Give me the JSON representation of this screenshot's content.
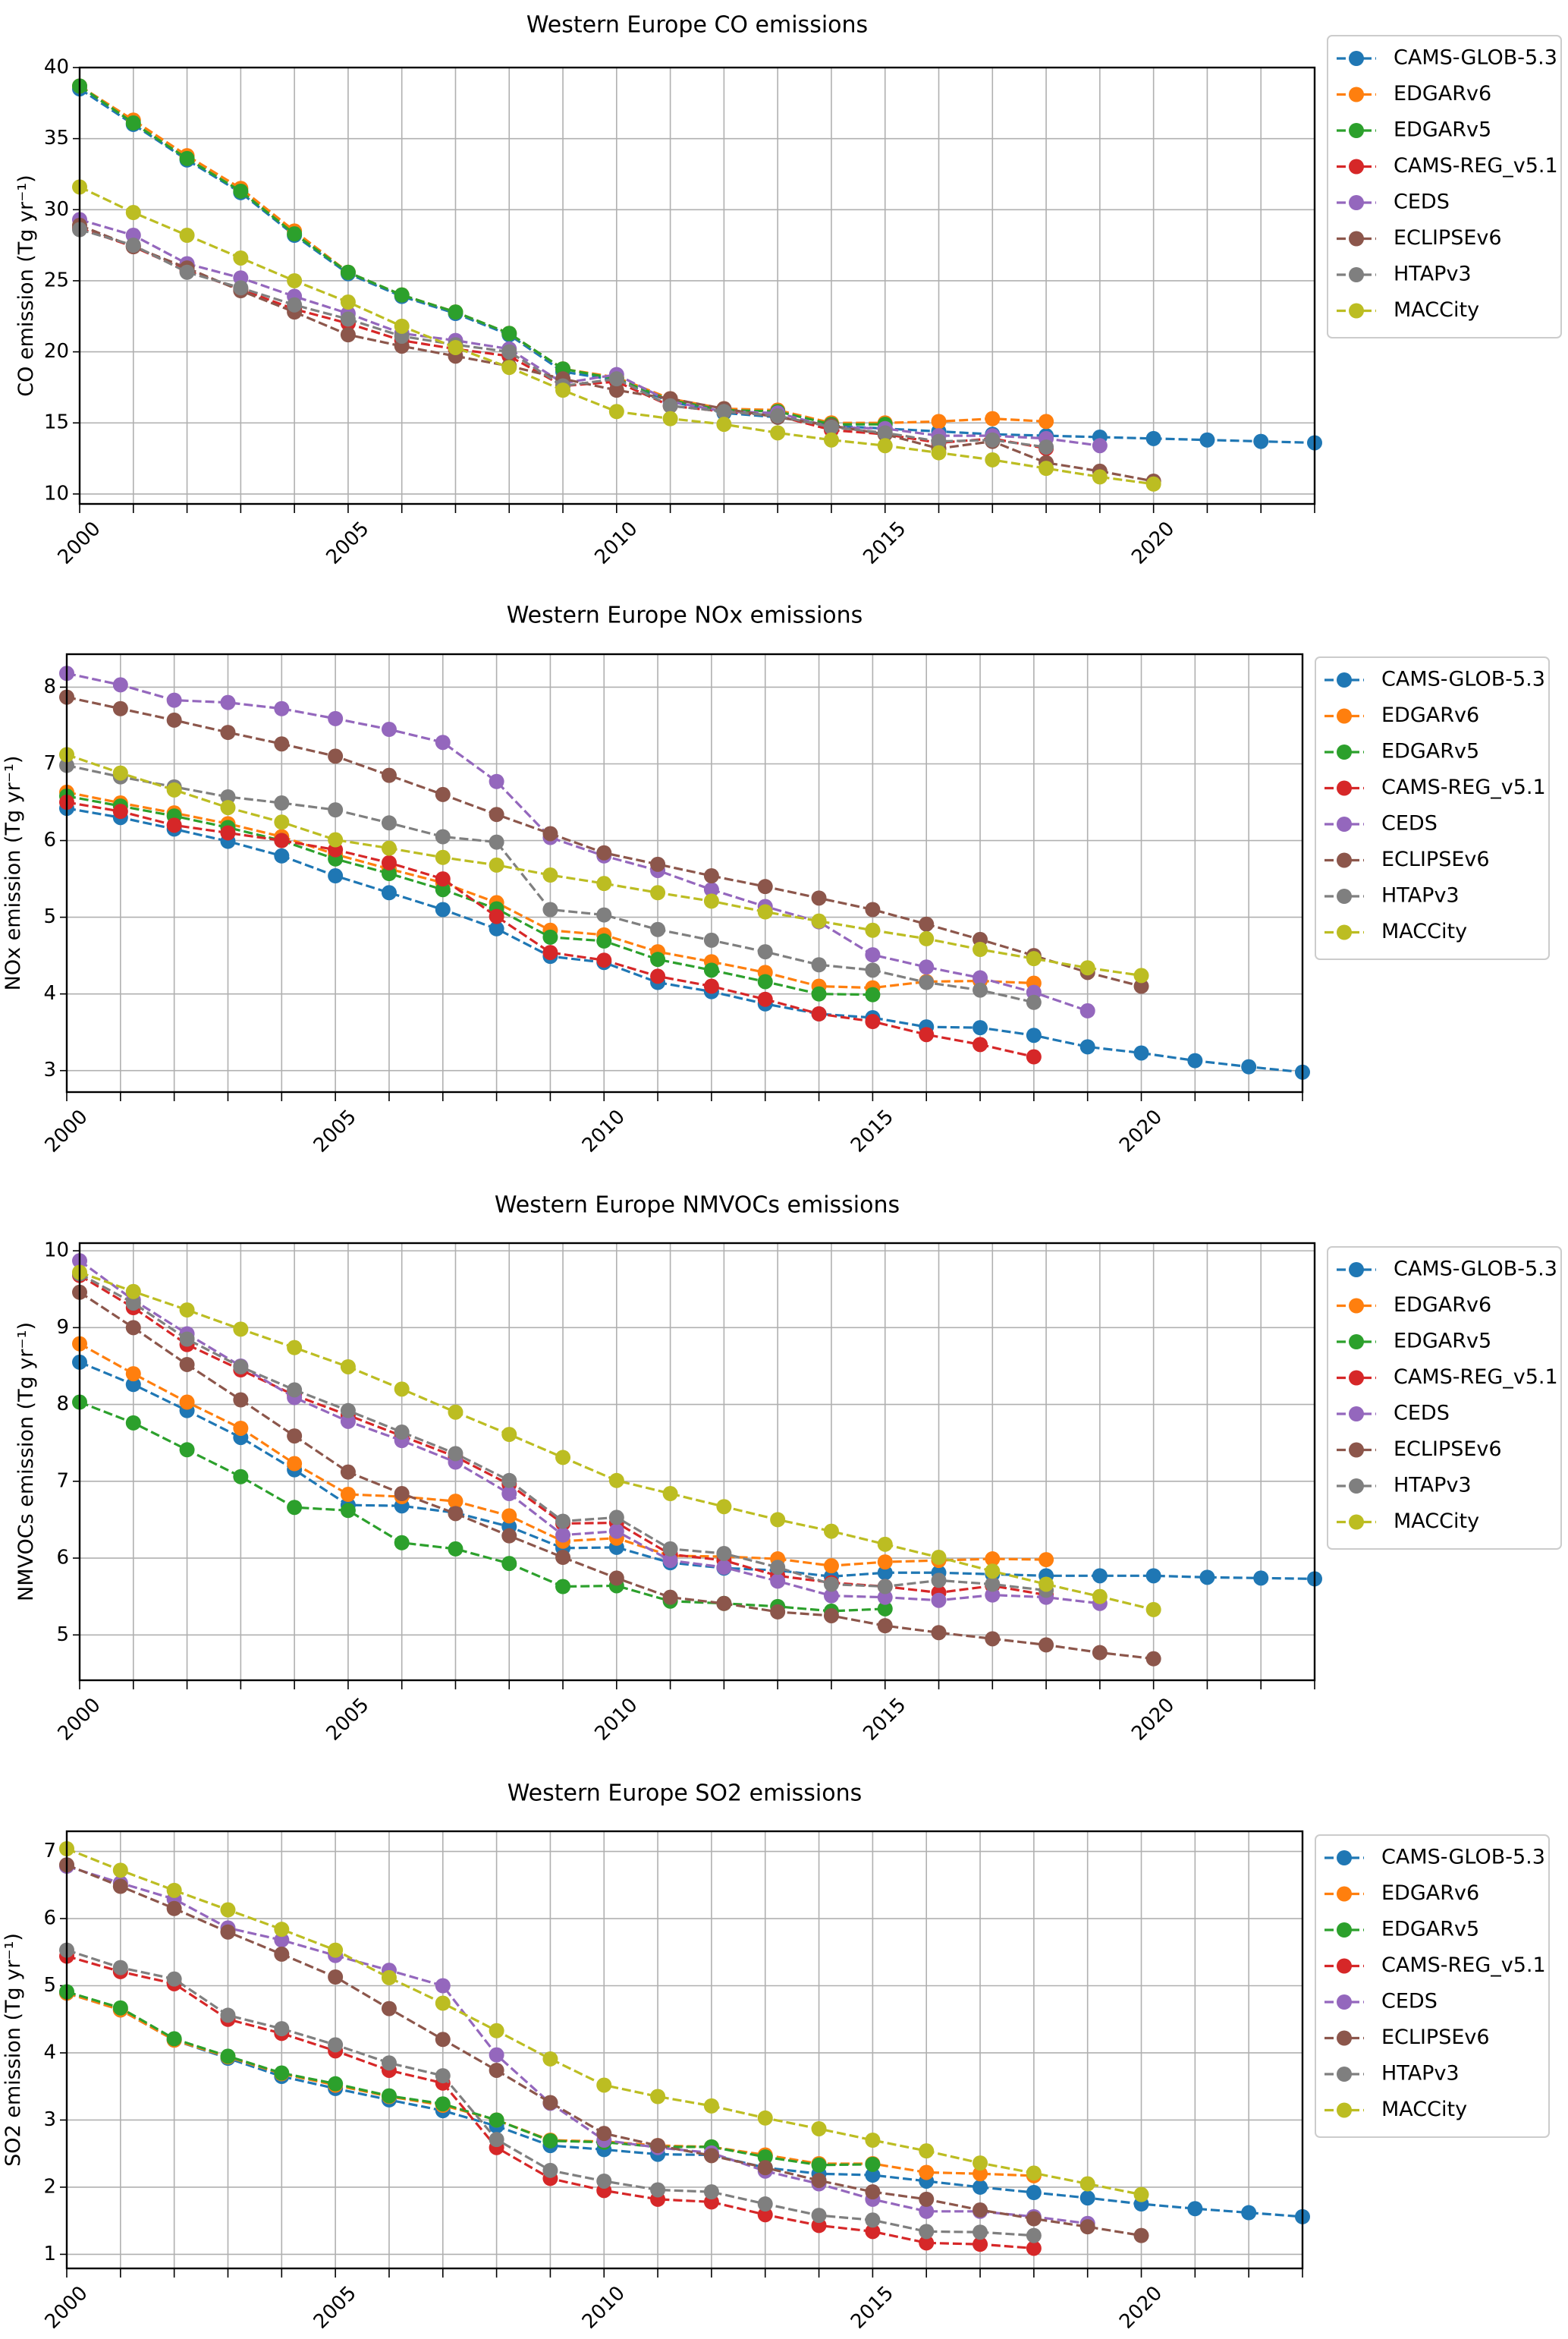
{
  "colors": {
    "CAMS-GLOB-5.3": "#1f77b4",
    "EDGARv6": "#ff7f0e",
    "EDGARv5": "#2ca02c",
    "CAMS-REG_v5.1": "#d62728",
    "CEDS": "#9467bd",
    "ECLIPSEv6": "#8c564b",
    "HTAPv3": "#7f7f7f",
    "MACCity": "#bcbd22"
  },
  "legend": [
    "CAMS-GLOB-5.3",
    "EDGARv6",
    "EDGARv5",
    "CAMS-REG_v5.1",
    "CEDS",
    "ECLIPSEv6",
    "HTAPv3",
    "MACCity"
  ],
  "chart_data": [
    {
      "type": "line",
      "title": "Western Europe CO emissions",
      "xlabel": "",
      "ylabel": "CO emission (Tg yr⁻¹)",
      "ylabel_main": "CO emission (Tg yr",
      "xlim": [
        2000,
        2023
      ],
      "ylim": [
        9.3,
        40
      ],
      "yticks": [
        10,
        15,
        20,
        25,
        30,
        35,
        40
      ],
      "xticks": [
        2000,
        2005,
        2010,
        2015,
        2020
      ],
      "grid": true,
      "legend_position": "right",
      "series": [
        {
          "name": "CAMS-GLOB-5.3",
          "x0": 2000,
          "values": [
            38.5,
            36.0,
            33.5,
            31.2,
            28.2,
            25.5,
            23.9,
            22.7,
            21.2,
            18.6,
            18.0,
            16.5,
            15.7,
            15.4,
            14.8,
            14.6,
            14.4,
            14.2,
            14.1,
            14.0,
            13.9,
            13.8,
            13.7,
            13.6
          ]
        },
        {
          "name": "EDGARv6",
          "x0": 2000,
          "values": [
            38.7,
            36.3,
            33.8,
            31.5,
            28.5,
            25.6,
            24.0,
            22.8,
            21.3,
            18.8,
            18.2,
            16.7,
            16.0,
            15.9,
            15.0,
            15.0,
            15.1,
            15.3,
            15.1
          ]
        },
        {
          "name": "EDGARv5",
          "x0": 2000,
          "values": [
            38.7,
            36.1,
            33.6,
            31.3,
            28.3,
            25.6,
            24.0,
            22.8,
            21.3,
            18.8,
            18.1,
            16.6,
            15.9,
            15.8,
            14.9,
            14.9
          ]
        },
        {
          "name": "CAMS-REG_v5.1",
          "x0": 2000,
          "values": [
            28.7,
            27.4,
            25.7,
            24.4,
            23.0,
            22.0,
            20.8,
            20.2,
            19.7,
            17.6,
            17.9,
            16.2,
            15.8,
            15.5,
            14.5,
            14.2,
            13.6,
            13.9,
            13.2
          ]
        },
        {
          "name": "CEDS",
          "x0": 2000,
          "values": [
            29.3,
            28.2,
            26.2,
            25.2,
            23.9,
            22.7,
            21.3,
            20.8,
            20.2,
            17.8,
            18.4,
            16.5,
            15.8,
            15.7,
            14.7,
            14.6,
            14.1,
            14.1,
            13.9,
            13.4
          ]
        },
        {
          "name": "ECLIPSEv6",
          "x0": 2000,
          "values": [
            28.9,
            27.4,
            25.9,
            24.3,
            22.8,
            21.2,
            20.4,
            19.7,
            19.0,
            18.1,
            17.3,
            16.7,
            16.0,
            15.4,
            14.8,
            14.2,
            13.2,
            13.7,
            12.2,
            11.6,
            10.9
          ]
        },
        {
          "name": "HTAPv3",
          "x0": 2000,
          "values": [
            28.6,
            27.5,
            25.6,
            24.5,
            23.3,
            22.3,
            21.1,
            20.5,
            20.0,
            17.6,
            18.1,
            16.2,
            15.8,
            15.5,
            14.7,
            14.3,
            13.7,
            13.8,
            13.3
          ]
        },
        {
          "name": "MACCity",
          "x0": 2000,
          "values": [
            31.6,
            29.8,
            28.2,
            26.6,
            25.0,
            23.5,
            21.8,
            20.3,
            18.9,
            17.3,
            15.8,
            15.3,
            14.9,
            14.3,
            13.8,
            13.4,
            12.9,
            12.4,
            11.8,
            11.2,
            10.7
          ]
        }
      ]
    },
    {
      "type": "line",
      "title": "Western Europe NOx emissions",
      "xlabel": "",
      "ylabel": "NOx emission (Tg yr⁻¹)",
      "ylabel_main": "NOx emission (Tg yr",
      "xlim": [
        2000,
        2023
      ],
      "ylim": [
        2.72,
        8.43
      ],
      "yticks": [
        3,
        4,
        5,
        6,
        7,
        8
      ],
      "xticks": [
        2000,
        2005,
        2010,
        2015,
        2020
      ],
      "grid": true,
      "legend_position": "right",
      "series": [
        {
          "name": "CAMS-GLOB-5.3",
          "x0": 2000,
          "values": [
            6.42,
            6.3,
            6.15,
            5.99,
            5.8,
            5.54,
            5.32,
            5.1,
            4.85,
            4.49,
            4.41,
            4.15,
            4.03,
            3.87,
            3.74,
            3.69,
            3.57,
            3.56,
            3.46,
            3.31,
            3.23,
            3.13,
            3.05,
            2.98
          ]
        },
        {
          "name": "EDGARv6",
          "x0": 2000,
          "values": [
            6.63,
            6.49,
            6.36,
            6.22,
            6.05,
            5.82,
            5.63,
            5.45,
            5.19,
            4.83,
            4.77,
            4.55,
            4.42,
            4.28,
            4.1,
            4.08,
            4.16,
            4.17,
            4.14
          ]
        },
        {
          "name": "EDGARv5",
          "x0": 2000,
          "values": [
            6.58,
            6.45,
            6.32,
            6.17,
            6.0,
            5.76,
            5.57,
            5.36,
            5.11,
            4.74,
            4.69,
            4.45,
            4.31,
            4.16,
            4.0,
            3.99
          ]
        },
        {
          "name": "CAMS-REG_v5.1",
          "x0": 2000,
          "values": [
            6.5,
            6.38,
            6.2,
            6.1,
            6.0,
            5.88,
            5.71,
            5.5,
            5.01,
            4.54,
            4.44,
            4.23,
            4.1,
            3.93,
            3.74,
            3.64,
            3.47,
            3.34,
            3.18
          ]
        },
        {
          "name": "CEDS",
          "x0": 2000,
          "values": [
            8.18,
            8.03,
            7.83,
            7.8,
            7.72,
            7.59,
            7.45,
            7.28,
            6.77,
            6.04,
            5.8,
            5.61,
            5.36,
            5.14,
            4.94,
            4.51,
            4.35,
            4.21,
            4.02,
            3.78
          ]
        },
        {
          "name": "ECLIPSEv6",
          "x0": 2000,
          "values": [
            7.87,
            7.72,
            7.57,
            7.41,
            7.26,
            7.1,
            6.85,
            6.6,
            6.34,
            6.09,
            5.84,
            5.69,
            5.54,
            5.4,
            5.25,
            5.1,
            4.91,
            4.71,
            4.5,
            4.28,
            4.1
          ]
        },
        {
          "name": "HTAPv3",
          "x0": 2000,
          "values": [
            6.98,
            6.83,
            6.7,
            6.57,
            6.49,
            6.4,
            6.23,
            6.05,
            5.98,
            5.1,
            5.03,
            4.84,
            4.7,
            4.55,
            4.38,
            4.31,
            4.15,
            4.05,
            3.89
          ]
        },
        {
          "name": "MACCity",
          "x0": 2000,
          "values": [
            7.12,
            6.88,
            6.66,
            6.43,
            6.24,
            6.01,
            5.9,
            5.78,
            5.68,
            5.55,
            5.44,
            5.32,
            5.21,
            5.07,
            4.95,
            4.83,
            4.72,
            4.58,
            4.46,
            4.34,
            4.24
          ]
        }
      ]
    },
    {
      "type": "line",
      "title": "Western Europe NMVOCs emissions",
      "xlabel": "",
      "ylabel": "NMVOCs emission (Tg yr⁻¹)",
      "ylabel_main": "NMVOCs emission (Tg yr",
      "xlim": [
        2000,
        2023
      ],
      "ylim": [
        4.41,
        10.1
      ],
      "yticks": [
        5,
        6,
        7,
        8,
        9,
        10
      ],
      "xticks": [
        2000,
        2005,
        2010,
        2015,
        2020
      ],
      "grid": true,
      "legend_position": "right",
      "series": [
        {
          "name": "CAMS-GLOB-5.3",
          "x0": 2000,
          "values": [
            8.55,
            8.26,
            7.92,
            7.57,
            7.15,
            6.69,
            6.68,
            6.59,
            6.41,
            6.13,
            6.14,
            5.94,
            5.87,
            5.84,
            5.76,
            5.81,
            5.81,
            5.79,
            5.77,
            5.77,
            5.77,
            5.75,
            5.74,
            5.73
          ]
        },
        {
          "name": "EDGARv6",
          "x0": 2000,
          "values": [
            8.79,
            8.4,
            8.03,
            7.69,
            7.23,
            6.83,
            6.8,
            6.74,
            6.55,
            6.22,
            6.26,
            6.03,
            6.02,
            5.99,
            5.9,
            5.95,
            5.97,
            5.99,
            5.98
          ]
        },
        {
          "name": "EDGARv5",
          "x0": 2000,
          "values": [
            8.03,
            7.76,
            7.41,
            7.06,
            6.66,
            6.62,
            6.2,
            6.12,
            5.93,
            5.63,
            5.64,
            5.44,
            5.41,
            5.37,
            5.31,
            5.34
          ]
        },
        {
          "name": "CAMS-REG_v5.1",
          "x0": 2000,
          "values": [
            9.68,
            9.26,
            8.78,
            8.45,
            8.12,
            7.86,
            7.59,
            7.32,
            6.96,
            6.45,
            6.46,
            6.05,
            5.97,
            5.77,
            5.68,
            5.63,
            5.55,
            5.64,
            5.52
          ]
        },
        {
          "name": "CEDS",
          "x0": 2000,
          "values": [
            9.87,
            9.36,
            8.92,
            8.5,
            8.09,
            7.78,
            7.53,
            7.25,
            6.84,
            6.3,
            6.35,
            5.97,
            5.88,
            5.7,
            5.51,
            5.49,
            5.45,
            5.52,
            5.49,
            5.41
          ]
        },
        {
          "name": "ECLIPSEv6",
          "x0": 2000,
          "values": [
            9.46,
            9.0,
            8.52,
            8.06,
            7.59,
            7.12,
            6.84,
            6.58,
            6.29,
            6.01,
            5.74,
            5.49,
            5.41,
            5.3,
            5.25,
            5.12,
            5.03,
            4.95,
            4.87,
            4.77,
            4.69
          ]
        },
        {
          "name": "HTAPv3",
          "x0": 2000,
          "values": [
            9.7,
            9.32,
            8.85,
            8.49,
            8.19,
            7.92,
            7.64,
            7.36,
            7.01,
            6.48,
            6.53,
            6.12,
            6.06,
            5.88,
            5.66,
            5.63,
            5.71,
            5.66,
            5.58
          ]
        },
        {
          "name": "MACCity",
          "x0": 2000,
          "values": [
            9.72,
            9.47,
            9.23,
            8.98,
            8.74,
            8.49,
            8.2,
            7.9,
            7.61,
            7.31,
            7.01,
            6.84,
            6.67,
            6.5,
            6.35,
            6.18,
            6.01,
            5.83,
            5.66,
            5.5,
            5.33
          ]
        }
      ]
    },
    {
      "type": "line",
      "title": "Western Europe SO2 emissions",
      "xlabel": "",
      "ylabel": "SO2 emission (Tg yr⁻¹)",
      "ylabel_main": "SO2 emission (Tg yr",
      "xlim": [
        2000,
        2023
      ],
      "ylim": [
        0.79,
        7.3
      ],
      "yticks": [
        1,
        2,
        3,
        4,
        5,
        6,
        7
      ],
      "xticks": [
        2000,
        2005,
        2010,
        2015,
        2020
      ],
      "grid": true,
      "legend_position": "right",
      "series": [
        {
          "name": "CAMS-GLOB-5.3",
          "x0": 2000,
          "values": [
            4.89,
            4.64,
            4.19,
            3.92,
            3.65,
            3.47,
            3.3,
            3.14,
            2.91,
            2.62,
            2.56,
            2.49,
            2.48,
            2.29,
            2.2,
            2.18,
            2.09,
            2.0,
            1.92,
            1.84,
            1.75,
            1.68,
            1.62,
            1.56
          ]
        },
        {
          "name": "EDGARv6",
          "x0": 2000,
          "values": [
            4.89,
            4.64,
            4.19,
            3.94,
            3.69,
            3.52,
            3.35,
            3.22,
            3.0,
            2.7,
            2.68,
            2.62,
            2.6,
            2.48,
            2.35,
            2.35,
            2.22,
            2.2,
            2.17
          ]
        },
        {
          "name": "EDGARv5",
          "x0": 2000,
          "values": [
            4.91,
            4.67,
            4.21,
            3.95,
            3.7,
            3.54,
            3.36,
            3.24,
            3.0,
            2.69,
            2.67,
            2.6,
            2.6,
            2.45,
            2.33,
            2.34
          ]
        },
        {
          "name": "CAMS-REG_v5.1",
          "x0": 2000,
          "values": [
            5.44,
            5.21,
            5.03,
            4.5,
            4.29,
            4.03,
            3.74,
            3.55,
            2.59,
            2.13,
            1.95,
            1.82,
            1.78,
            1.59,
            1.43,
            1.34,
            1.17,
            1.15,
            1.09
          ]
        },
        {
          "name": "CEDS",
          "x0": 2000,
          "values": [
            6.78,
            6.53,
            6.29,
            5.86,
            5.68,
            5.45,
            5.23,
            5.0,
            3.97,
            3.25,
            2.7,
            2.59,
            2.51,
            2.24,
            2.05,
            1.82,
            1.64,
            1.64,
            1.56,
            1.46
          ]
        },
        {
          "name": "ECLIPSEv6",
          "x0": 2000,
          "values": [
            6.8,
            6.48,
            6.15,
            5.8,
            5.47,
            5.13,
            4.66,
            4.2,
            3.74,
            3.26,
            2.8,
            2.62,
            2.47,
            2.29,
            2.1,
            1.93,
            1.82,
            1.66,
            1.53,
            1.41,
            1.28
          ]
        },
        {
          "name": "HTAPv3",
          "x0": 2000,
          "values": [
            5.53,
            5.27,
            5.1,
            4.56,
            4.36,
            4.12,
            3.85,
            3.66,
            2.71,
            2.25,
            2.09,
            1.96,
            1.93,
            1.75,
            1.58,
            1.51,
            1.34,
            1.33,
            1.28
          ]
        },
        {
          "name": "MACCity",
          "x0": 2000,
          "values": [
            7.04,
            6.72,
            6.42,
            6.13,
            5.84,
            5.53,
            5.12,
            4.74,
            4.33,
            3.91,
            3.52,
            3.35,
            3.21,
            3.03,
            2.87,
            2.7,
            2.54,
            2.36,
            2.21,
            2.05,
            1.89
          ]
        }
      ]
    }
  ]
}
